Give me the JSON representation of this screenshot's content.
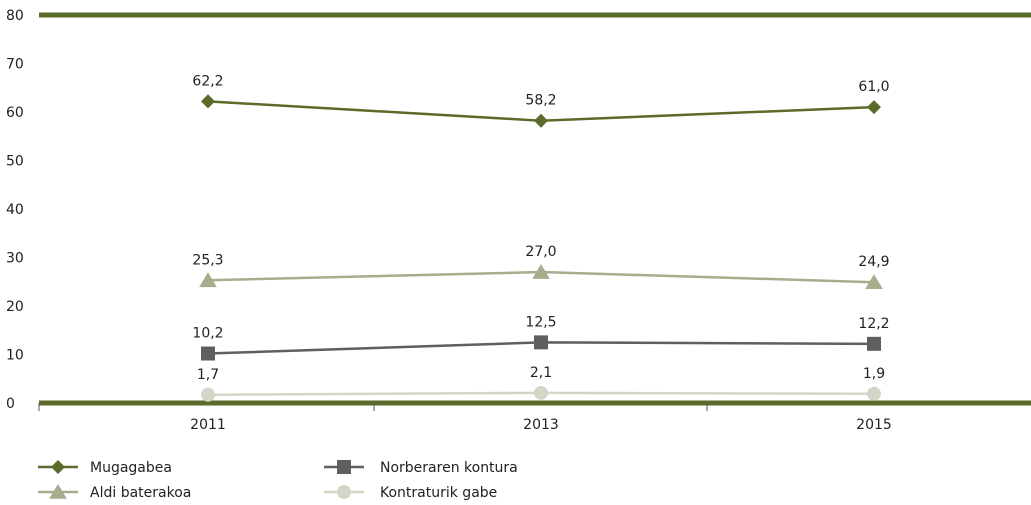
{
  "chart_data": {
    "type": "line",
    "title": "",
    "xlabel": "",
    "ylabel": "",
    "categories": [
      "2011",
      "2013",
      "2015"
    ],
    "ylim": [
      0,
      80
    ],
    "yticks": [
      "0",
      "10",
      "20",
      "30",
      "40",
      "50",
      "60",
      "70",
      "80"
    ],
    "grid": false,
    "legend_position": "bottom-left",
    "series": [
      {
        "name": "Mugagabea",
        "values": [
          62.2,
          58.2,
          61.0
        ],
        "labels": [
          "62,2",
          "58,2",
          "61,0"
        ],
        "color": "#5a6b2a",
        "marker": "diamond"
      },
      {
        "name": "Aldi baterakoa",
        "values": [
          25.3,
          27.0,
          24.9
        ],
        "labels": [
          "25,3",
          "27,0",
          "24,9"
        ],
        "color": "#a6ad8c",
        "marker": "triangle"
      },
      {
        "name": "Norberaren kontura",
        "values": [
          10.2,
          12.5,
          12.2
        ],
        "labels": [
          "10,2",
          "12,5",
          "12,2"
        ],
        "color": "#5f5f5f",
        "marker": "square"
      },
      {
        "name": "Kontraturik gabe",
        "values": [
          1.7,
          2.1,
          1.9
        ],
        "labels": [
          "1,7",
          "2,1",
          "1,9"
        ],
        "color": "#d3d6c6",
        "marker": "circle"
      }
    ],
    "frame_color": "#5a6b2a"
  }
}
